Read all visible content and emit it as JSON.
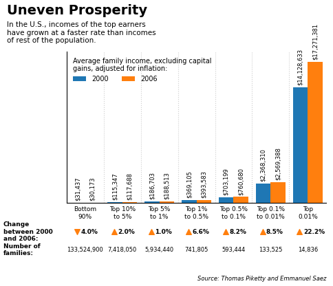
{
  "chart_data": {
    "type": "bar",
    "title": "Uneven Prosperity",
    "subtitle": "In the U.S., incomes of the top earners\nhave grown at a faster rate than incomes\nof rest of the population.",
    "legend_title": "Average family income, excluding capital\ngains, adjusted for inflation:",
    "categories": [
      "Bottom\n90%",
      "Top 10%\nto 5%",
      "Top 5%\nto 1%",
      "Top 1%\nto 0.5%",
      "Top 0.5%\nto 0.1%",
      "Top 0.1%\nto 0.01%",
      "Top\n0.01%"
    ],
    "series": [
      {
        "name": "2000",
        "values": [
          31437,
          115347,
          186703,
          369105,
          703199,
          2368310,
          14128633
        ],
        "value_labels": [
          "$31,437",
          "$115,347",
          "$186,703",
          "$369,105",
          "$703,199",
          "$2,368,310",
          "$14,128,633"
        ]
      },
      {
        "name": "2006",
        "values": [
          30173,
          117688,
          188513,
          393583,
          760680,
          2569388,
          17271381
        ],
        "value_labels": [
          "$30,173",
          "$117,688",
          "$188,513",
          "$393,583",
          "$760,680",
          "$2,569,388",
          "$17,271,381"
        ]
      }
    ],
    "ylim": [
      0,
      18500000
    ],
    "tick_labels": "x",
    "data_labels": true,
    "legend": "upper left",
    "changes": {
      "label": "Change\nbetween 2000\nand 2006:",
      "values": [
        -4.0,
        2.0,
        1.0,
        6.6,
        8.2,
        8.5,
        22.2
      ],
      "value_labels": [
        "4.0%",
        "2.0%",
        "1.0%",
        "6.6%",
        "8.2%",
        "8.5%",
        "22.2%"
      ]
    },
    "families": {
      "label": "Number of\nfamilies:",
      "values": [
        133524900,
        7418050,
        5934440,
        741805,
        593444,
        133525,
        14836
      ],
      "value_labels": [
        "133,524,900",
        "7,418,050",
        "5,934,440",
        "741,805",
        "593,444",
        "133,525",
        "14,836"
      ]
    },
    "source": "Source: Thomas Piketty and Emmanuel Saez"
  }
}
